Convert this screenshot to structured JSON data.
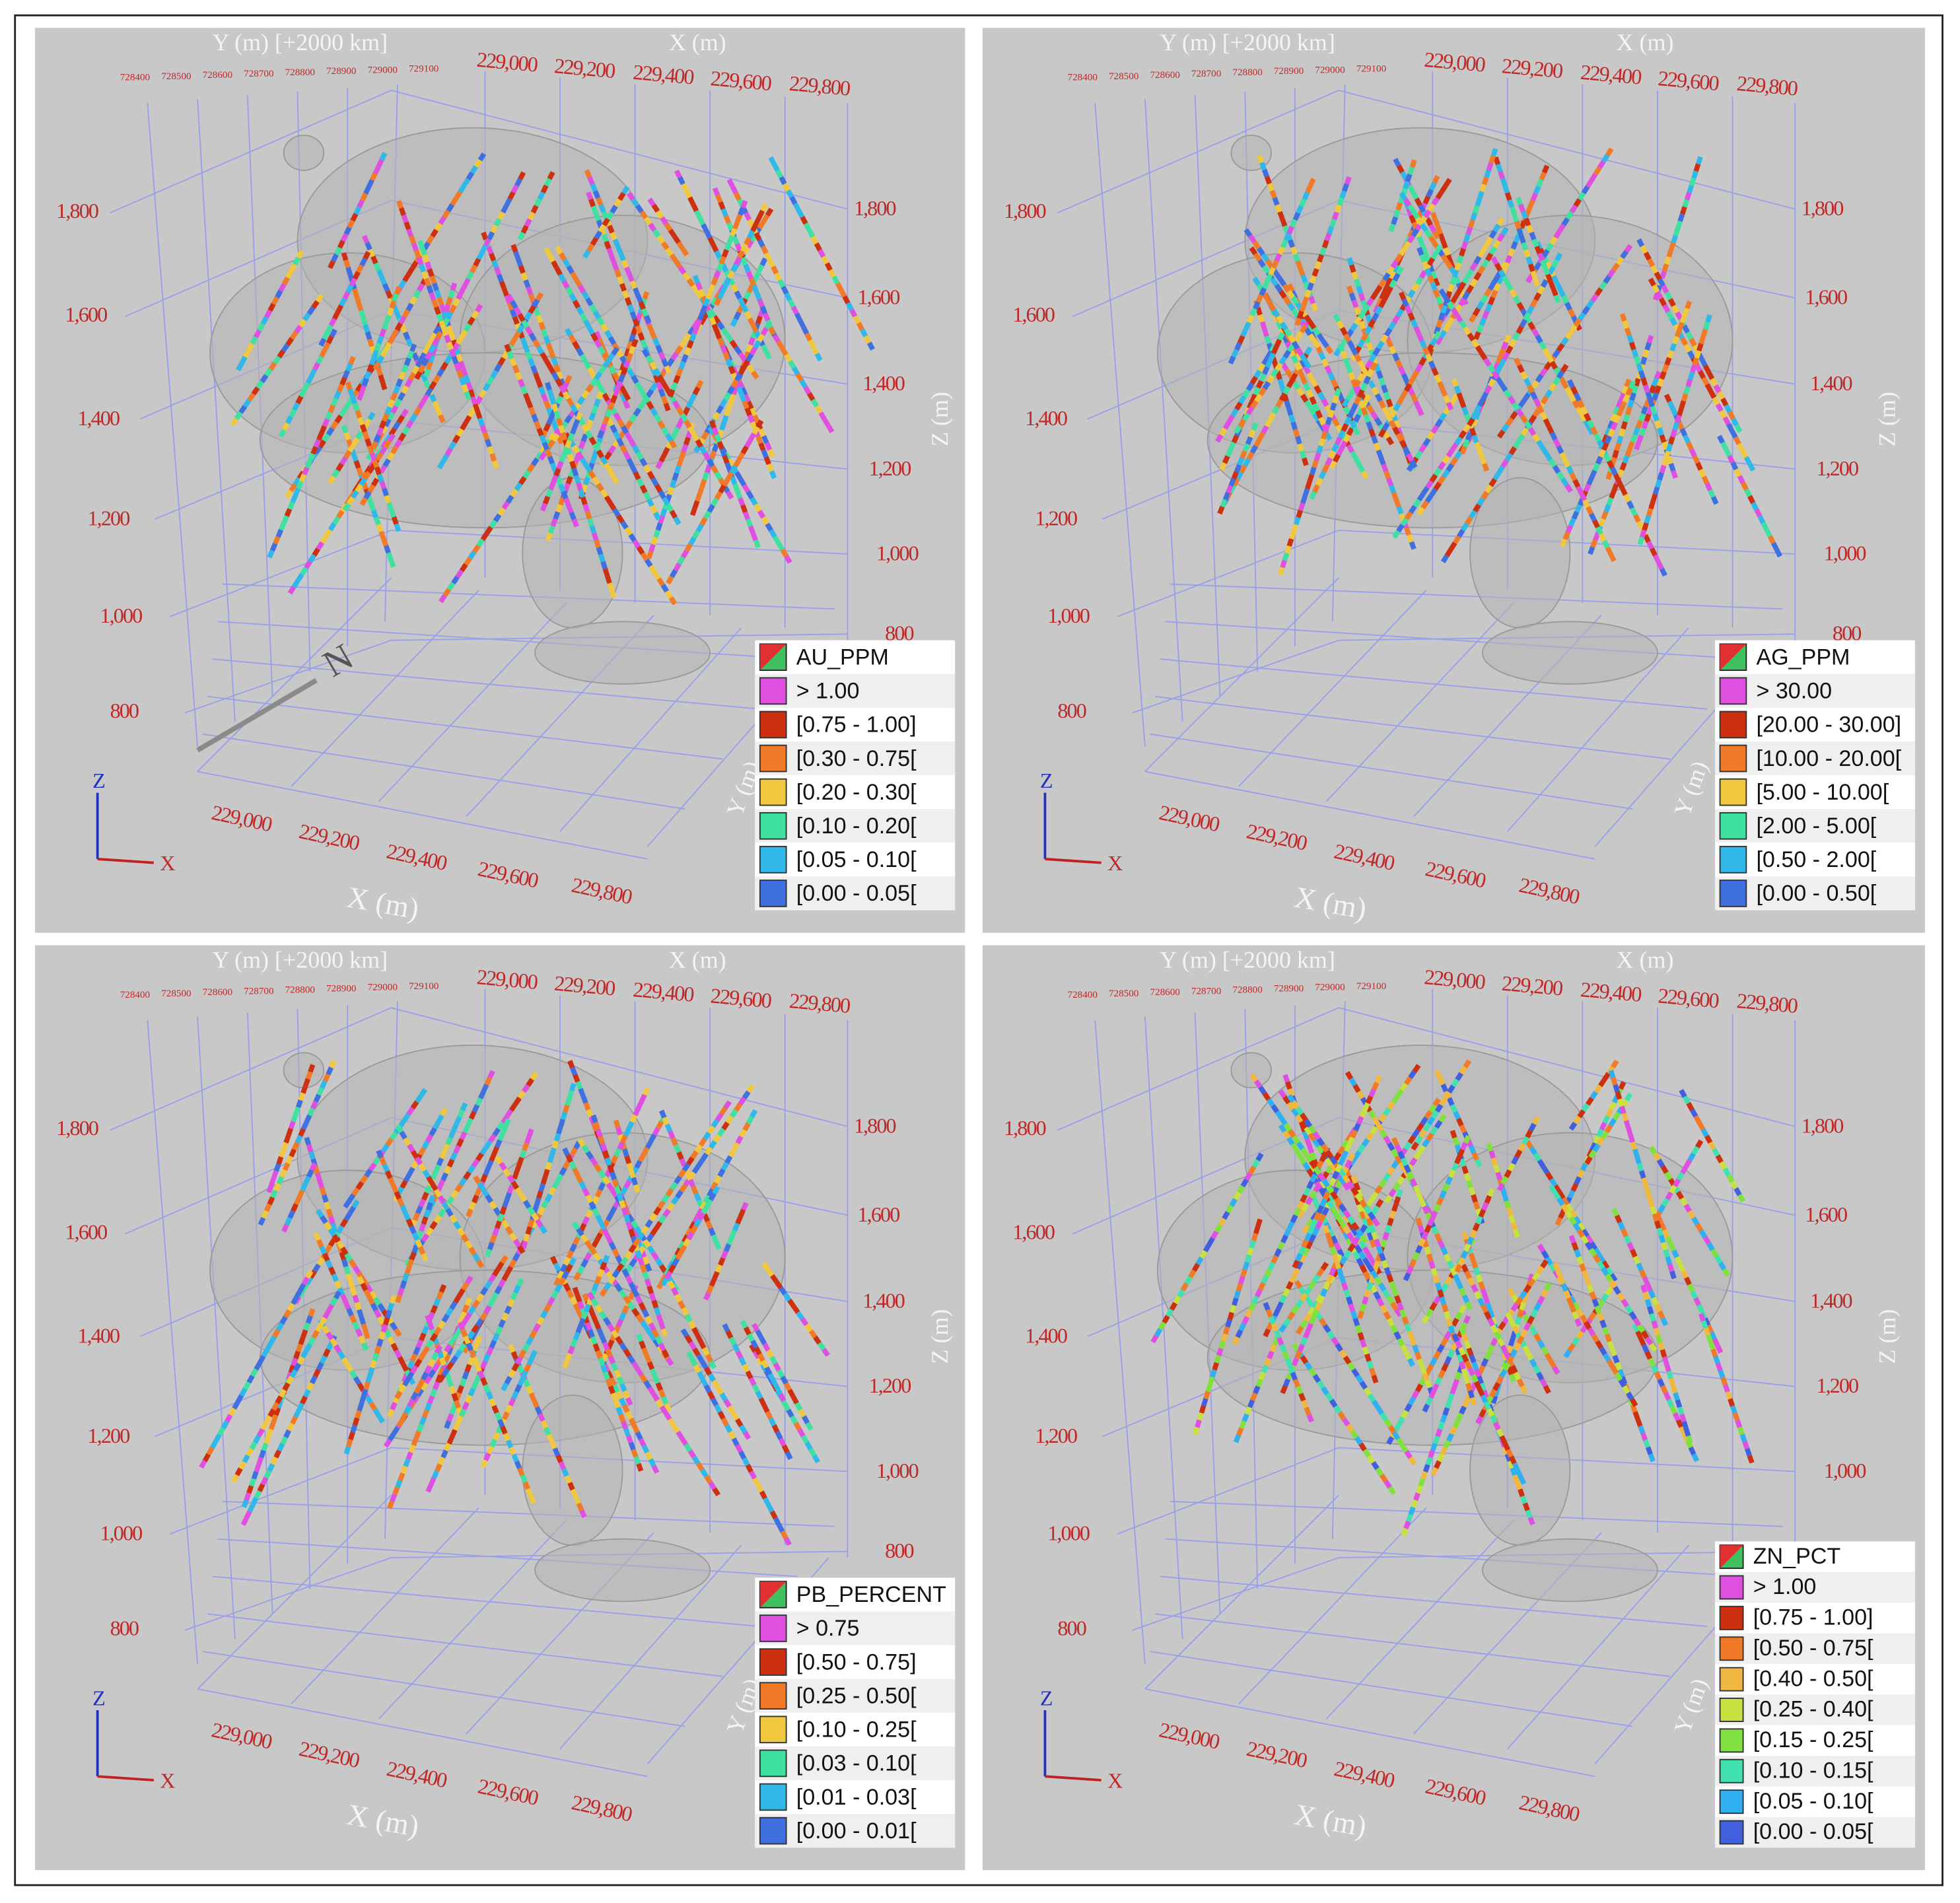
{
  "axes": {
    "y_title_top": "Y (m) [+2000 km]",
    "x_title": "X (m)",
    "z_title": "Z (m)",
    "y_title": "Y (m)",
    "y_ticks_top": [
      "728400",
      "728500",
      "728600",
      "728700",
      "728800",
      "728900",
      "729000",
      "729100"
    ],
    "x_ticks": [
      "229,000",
      "229,200",
      "229,400",
      "229,600",
      "229,800"
    ],
    "z_ticks": [
      "1,800",
      "1,600",
      "1,400",
      "1,200",
      "1,000",
      "800"
    ],
    "triad_z": "Z",
    "triad_x": "X"
  },
  "panels": [
    {
      "north_label": "N",
      "legend": {
        "title": "AU_PPM",
        "items": [
          {
            "label": "> 1.00",
            "color": "#e050e0"
          },
          {
            "label": "[0.75 - 1.00]",
            "color": "#cc3010"
          },
          {
            "label": "[0.30 - 0.75[",
            "color": "#f07a28"
          },
          {
            "label": "[0.20 - 0.30[",
            "color": "#f0c840"
          },
          {
            "label": "[0.10 - 0.20[",
            "color": "#40e0a0"
          },
          {
            "label": "[0.05 - 0.10[",
            "color": "#30b8e8"
          },
          {
            "label": "[0.00 - 0.05[",
            "color": "#4070e0"
          }
        ]
      }
    },
    {
      "legend": {
        "title": "AG_PPM",
        "items": [
          {
            "label": "> 30.00",
            "color": "#e050e0"
          },
          {
            "label": "[20.00 - 30.00]",
            "color": "#cc3010"
          },
          {
            "label": "[10.00 - 20.00[",
            "color": "#f07a28"
          },
          {
            "label": "[5.00 - 10.00[",
            "color": "#f0c840"
          },
          {
            "label": "[2.00 - 5.00[",
            "color": "#40e0a0"
          },
          {
            "label": "[0.50 - 2.00[",
            "color": "#30b8e8"
          },
          {
            "label": "[0.00 - 0.50[",
            "color": "#4070e0"
          }
        ]
      }
    },
    {
      "legend": {
        "title": "PB_PERCENT",
        "items": [
          {
            "label": "> 0.75",
            "color": "#e050e0"
          },
          {
            "label": "[0.50 - 0.75]",
            "color": "#cc3010"
          },
          {
            "label": "[0.25 - 0.50[",
            "color": "#f07a28"
          },
          {
            "label": "[0.10 - 0.25[",
            "color": "#f0c840"
          },
          {
            "label": "[0.03 - 0.10[",
            "color": "#40e0a0"
          },
          {
            "label": "[0.01 - 0.03[",
            "color": "#30b8e8"
          },
          {
            "label": "[0.00 - 0.01[",
            "color": "#4070e0"
          }
        ]
      }
    },
    {
      "legend": {
        "title": "ZN_PCT",
        "items": [
          {
            "label": "> 1.00",
            "color": "#e050e0"
          },
          {
            "label": "[0.75 - 1.00]",
            "color": "#cc3010"
          },
          {
            "label": "[0.50 - 0.75[",
            "color": "#f07a28"
          },
          {
            "label": "[0.40 - 0.50[",
            "color": "#f0b840"
          },
          {
            "label": "[0.25 - 0.40[",
            "color": "#c8e040"
          },
          {
            "label": "[0.15 - 0.25[",
            "color": "#80e040"
          },
          {
            "label": "[0.10 - 0.15[",
            "color": "#40e0b0"
          },
          {
            "label": "[0.05 - 0.10[",
            "color": "#30b0f0"
          },
          {
            "label": "[0.00 - 0.05[",
            "color": "#4060e0"
          }
        ]
      }
    }
  ]
}
